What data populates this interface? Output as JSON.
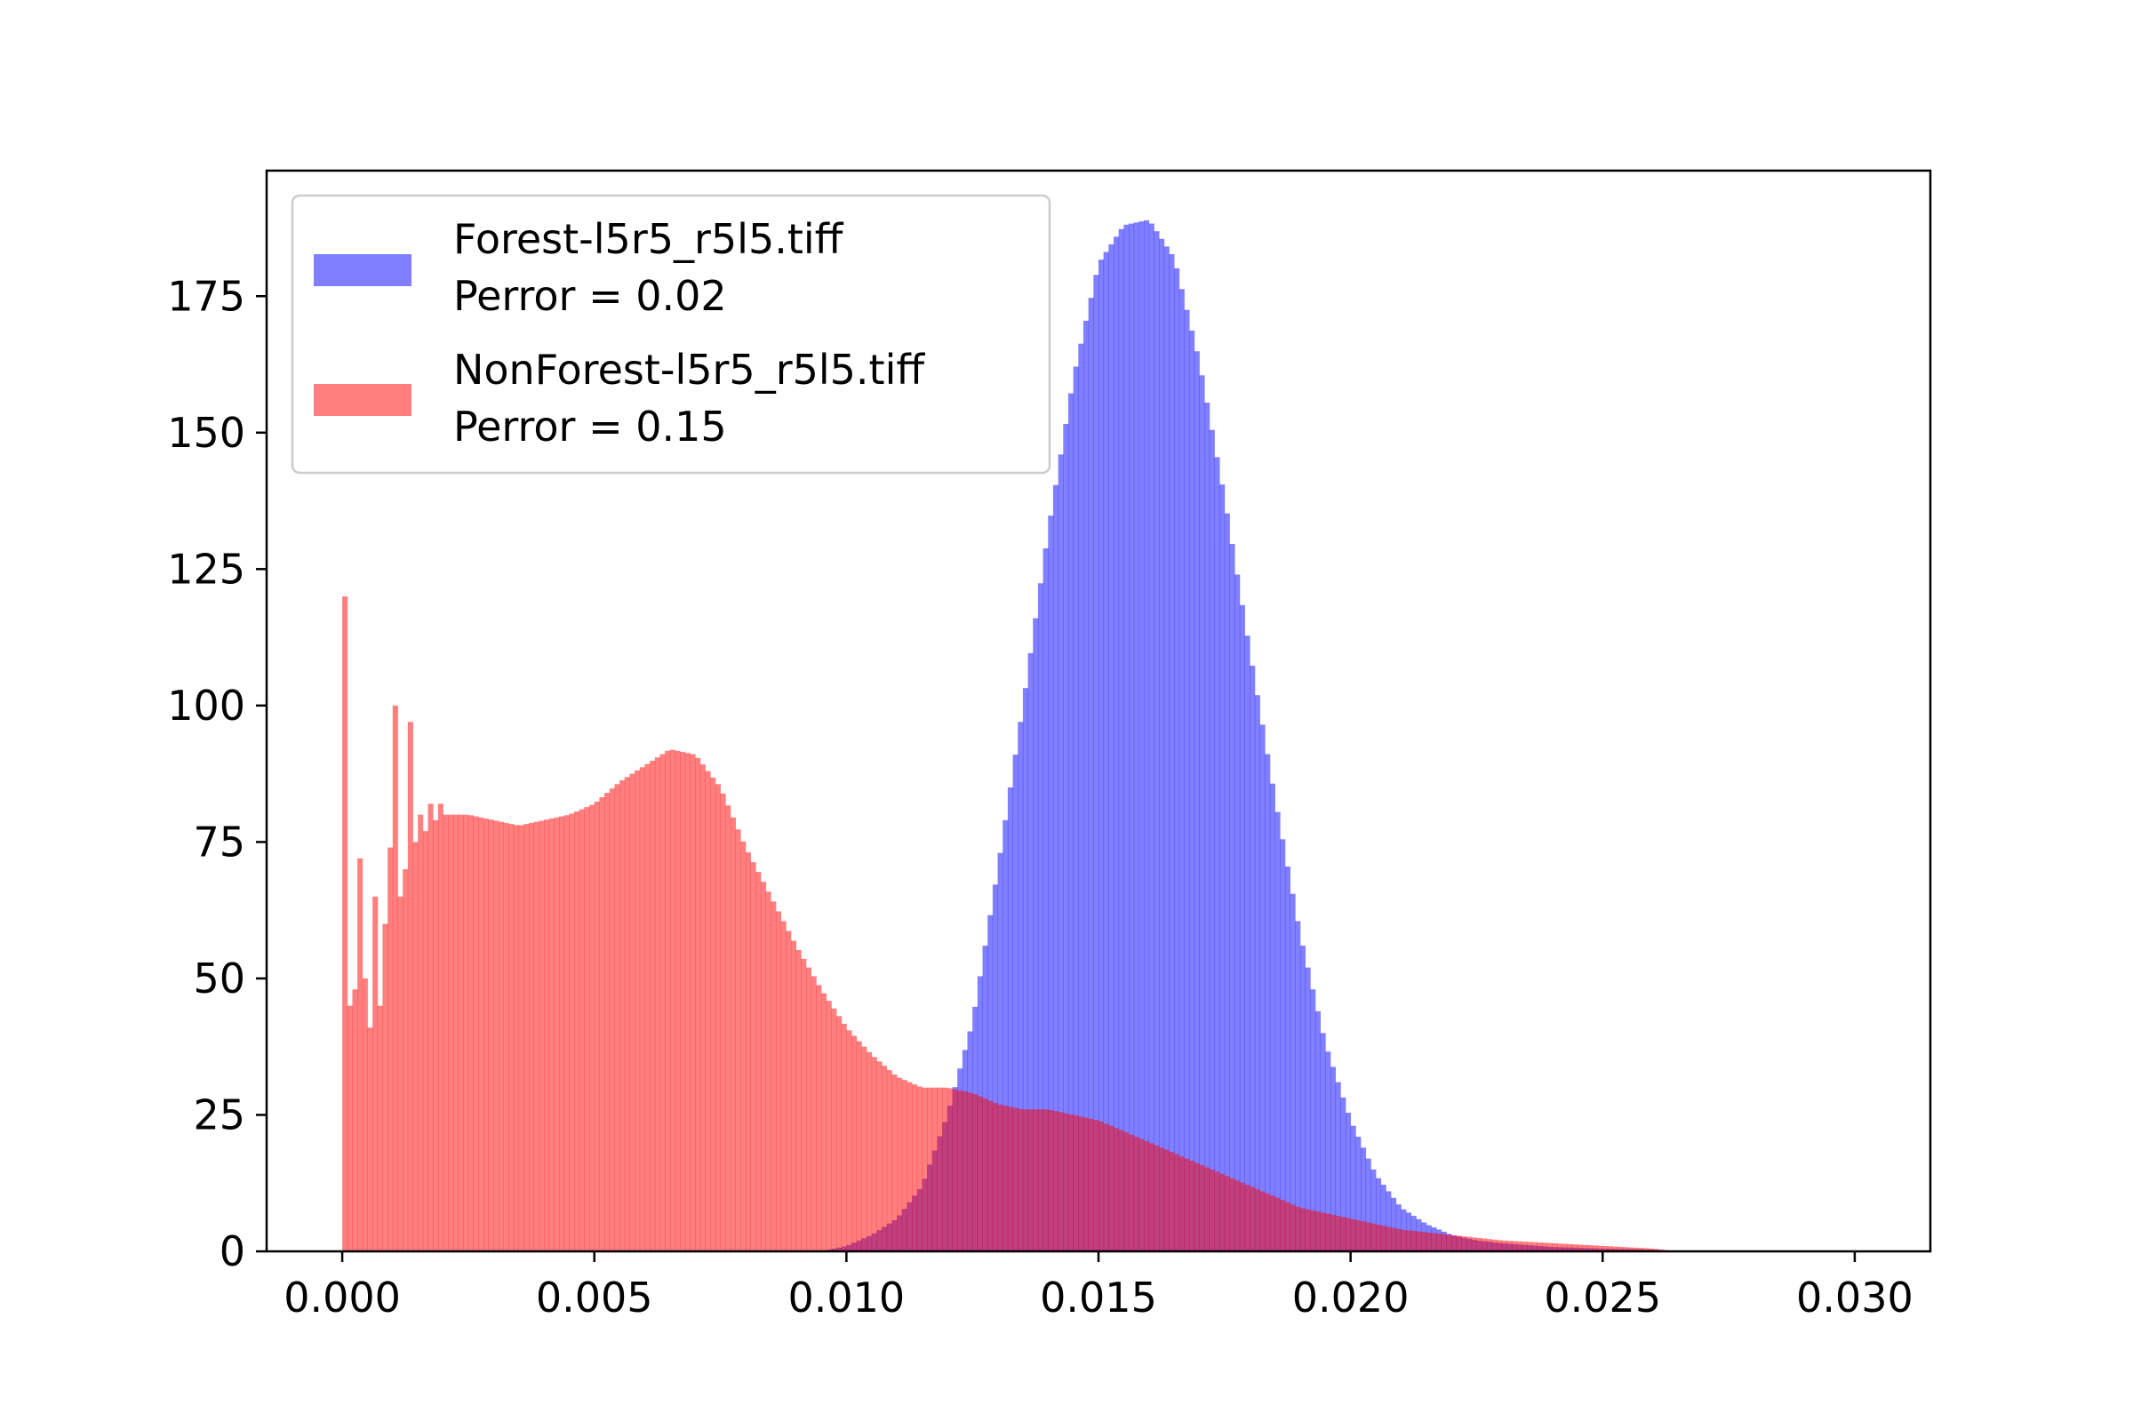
{
  "chart_data": {
    "type": "bar",
    "title": "",
    "xlabel": "",
    "ylabel": "",
    "xlim": [
      -0.0015,
      0.0315
    ],
    "ylim": [
      0,
      198
    ],
    "bin_width": 0.0001,
    "grid": false,
    "legend_position": "top-left",
    "x_ticks": [
      "0.000",
      "0.005",
      "0.010",
      "0.015",
      "0.020",
      "0.025",
      "0.030"
    ],
    "y_ticks": [
      "0",
      "25",
      "50",
      "75",
      "100",
      "125",
      "150",
      "175"
    ],
    "series": [
      {
        "name": "Forest-l5r5_r5l5.tiff",
        "annotation": "Perror = 0.02",
        "color": "#0000ff",
        "opacity": 0.5,
        "x": [
          0.0095,
          0.01,
          0.0105,
          0.011,
          0.0115,
          0.012,
          0.0125,
          0.013,
          0.0135,
          0.014,
          0.0145,
          0.015,
          0.0155,
          0.016,
          0.0165,
          0.017,
          0.0175,
          0.018,
          0.0185,
          0.019,
          0.0195,
          0.02,
          0.0205,
          0.021,
          0.0215,
          0.022,
          0.0225,
          0.023,
          0.024,
          0.025,
          0.026,
          0.0265
        ],
        "values": [
          0,
          1,
          3,
          6,
          12,
          25,
          42,
          70,
          100,
          132,
          160,
          181,
          188,
          189,
          182,
          163,
          138,
          110,
          83,
          58,
          38,
          24,
          14,
          8,
          5,
          3,
          2,
          1.5,
          0.8,
          0.5,
          0.3,
          0
        ]
      },
      {
        "name": "NonForest-l5r5_r5l5.tiff",
        "annotation": "Perror = 0.15",
        "color": "#ff0000",
        "opacity": 0.5,
        "x": [
          0.0,
          0.0001,
          0.0002,
          0.0003,
          0.0004,
          0.0005,
          0.0006,
          0.0007,
          0.0008,
          0.0009,
          0.001,
          0.0011,
          0.0012,
          0.0013,
          0.0014,
          0.0015,
          0.0016,
          0.0017,
          0.0018,
          0.0019,
          0.002,
          0.0025,
          0.003,
          0.0035,
          0.004,
          0.0045,
          0.005,
          0.0055,
          0.006,
          0.0065,
          0.007,
          0.0075,
          0.008,
          0.0085,
          0.009,
          0.0095,
          0.01,
          0.0105,
          0.011,
          0.0115,
          0.012,
          0.0125,
          0.013,
          0.0135,
          0.014,
          0.0145,
          0.015,
          0.0155,
          0.016,
          0.0165,
          0.017,
          0.0175,
          0.018,
          0.0185,
          0.019,
          0.0195,
          0.02,
          0.021,
          0.022,
          0.023,
          0.024,
          0.025,
          0.026,
          0.0265
        ],
        "values": [
          120,
          45,
          48,
          72,
          50,
          41,
          65,
          45,
          60,
          74,
          100,
          65,
          70,
          97,
          75,
          80,
          77,
          82,
          79,
          82,
          80,
          80,
          79,
          78,
          79,
          80,
          82,
          86,
          89,
          92,
          91,
          85,
          74,
          65,
          56,
          48,
          41,
          36,
          32,
          30,
          30,
          29,
          27,
          26,
          26,
          25,
          24,
          22,
          20,
          18,
          16,
          14,
          12,
          10,
          8,
          7,
          6,
          4,
          3,
          2,
          1.5,
          1,
          0.5,
          0
        ]
      }
    ]
  }
}
